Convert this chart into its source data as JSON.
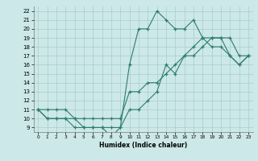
{
  "title": "",
  "xlabel": "Humidex (Indice chaleur)",
  "bg_color": "#cce8e8",
  "line_color": "#2d7d6e",
  "grid_color": "#aacccc",
  "x_values": [
    0,
    1,
    2,
    3,
    4,
    5,
    6,
    7,
    8,
    9,
    10,
    11,
    12,
    13,
    14,
    15,
    16,
    17,
    18,
    19,
    20,
    21,
    22,
    23
  ],
  "line1": [
    11,
    10,
    10,
    10,
    10,
    9,
    9,
    9,
    8,
    9,
    11,
    11,
    12,
    13,
    16,
    15,
    17,
    18,
    19,
    19,
    19,
    17,
    16,
    17
  ],
  "line2": [
    11,
    11,
    11,
    11,
    10,
    10,
    10,
    10,
    10,
    10,
    13,
    13,
    14,
    14,
    15,
    16,
    17,
    17,
    18,
    19,
    19,
    19,
    17,
    17
  ],
  "line3": [
    11,
    10,
    10,
    10,
    9,
    9,
    9,
    9,
    9,
    9,
    16,
    20,
    20,
    22,
    21,
    20,
    20,
    21,
    19,
    18,
    18,
    17,
    16,
    17
  ],
  "xlim": [
    -0.5,
    23.5
  ],
  "ylim": [
    8.5,
    22.5
  ],
  "yticks": [
    9,
    10,
    11,
    12,
    13,
    14,
    15,
    16,
    17,
    18,
    19,
    20,
    21,
    22
  ],
  "xticks": [
    0,
    1,
    2,
    3,
    4,
    5,
    6,
    7,
    8,
    9,
    10,
    11,
    12,
    13,
    14,
    15,
    16,
    17,
    18,
    19,
    20,
    21,
    22,
    23
  ]
}
